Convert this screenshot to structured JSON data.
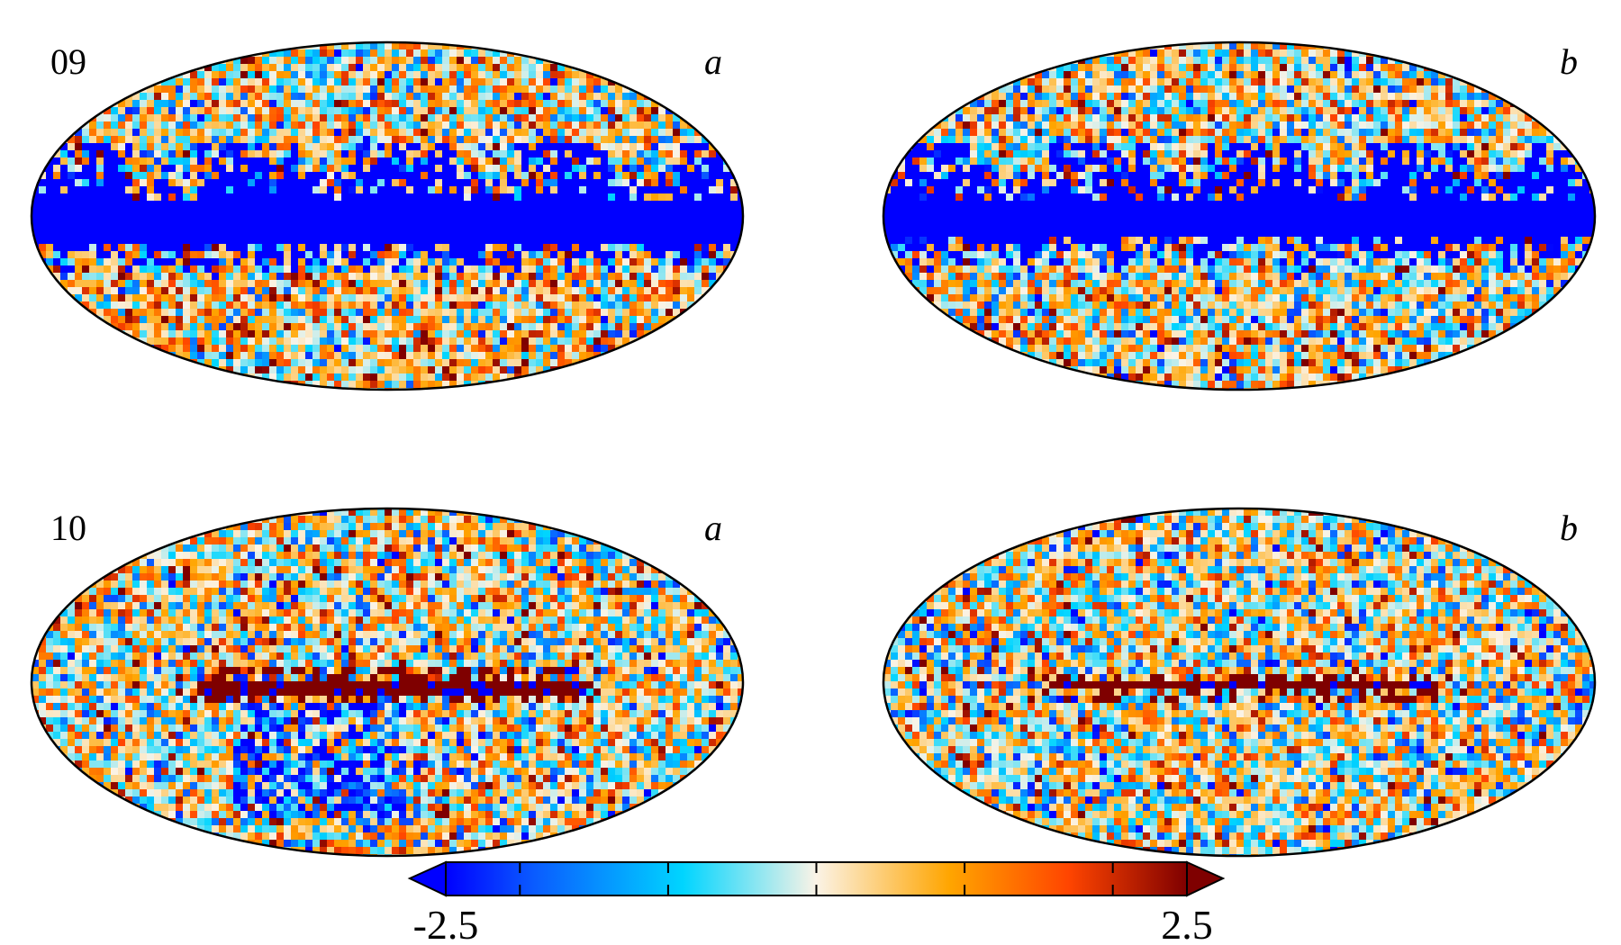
{
  "figure": {
    "panels": [
      {
        "row_label": "09",
        "col_label": "a",
        "variant": "09a"
      },
      {
        "row_label": "",
        "col_label": "b",
        "variant": "09b"
      },
      {
        "row_label": "10",
        "col_label": "a",
        "variant": "10a"
      },
      {
        "row_label": "",
        "col_label": "b",
        "variant": "10b"
      }
    ],
    "colorbar": {
      "min_label": "-2.5",
      "max_label": "2.5",
      "min": -2.5,
      "max": 2.5,
      "ticks": [
        -2.5,
        -2.0,
        -1.0,
        0,
        1.0,
        2.0,
        2.5
      ],
      "extend": "both",
      "colors": [
        "#0000ff",
        "#0a5cff",
        "#00d5ff",
        "#fbf3e6",
        "#ffa500",
        "#ff4500",
        "#7f0000"
      ]
    }
  }
}
